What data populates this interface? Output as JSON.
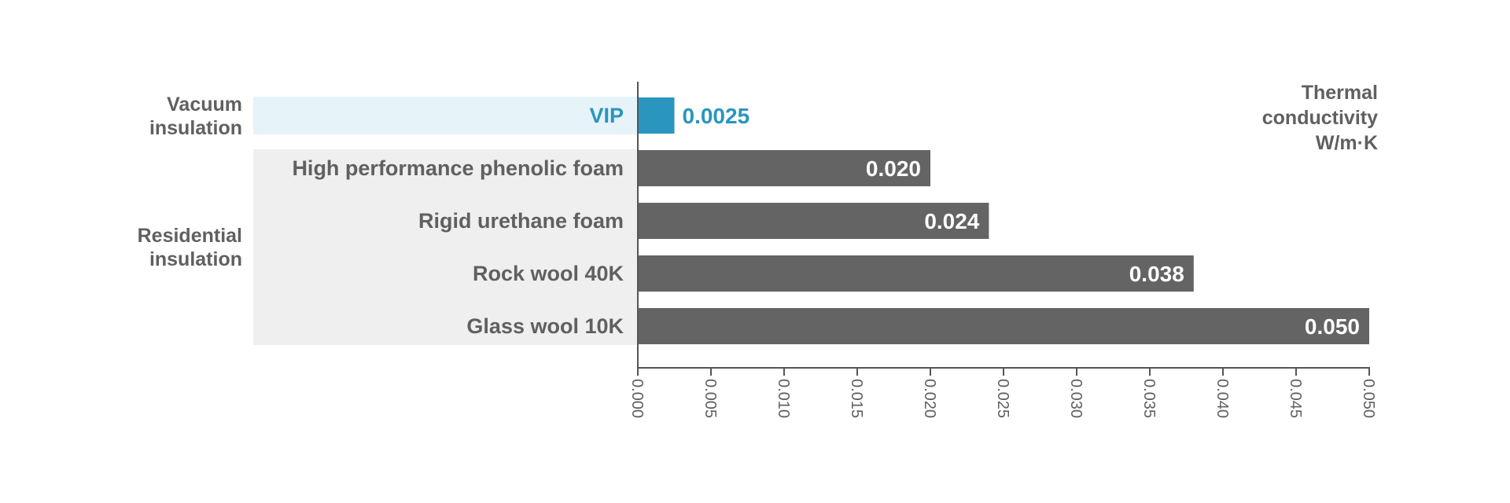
{
  "chart_data": {
    "type": "bar",
    "orientation": "horizontal",
    "categories": [
      "VIP",
      "High performance phenolic foam",
      "Rigid urethane foam",
      "Rock wool 40K",
      "Glass wool 10K"
    ],
    "values": [
      0.0025,
      0.02,
      0.024,
      0.038,
      0.05
    ],
    "value_labels": [
      "0.0025",
      "0.020",
      "0.024",
      "0.038",
      "0.050"
    ],
    "groups": [
      {
        "label_lines": [
          "Vacuum",
          "insulation"
        ],
        "members": [
          "VIP"
        ]
      },
      {
        "label_lines": [
          "Residential",
          "insulation"
        ],
        "members": [
          "High performance phenolic foam",
          "Rigid urethane foam",
          "Rock wool 40K",
          "Glass wool 10K"
        ]
      }
    ],
    "xlim": [
      0,
      0.05
    ],
    "x_ticks": [
      "0.000",
      "0.005",
      "0.010",
      "0.015",
      "0.020",
      "0.025",
      "0.030",
      "0.035",
      "0.040",
      "0.045",
      "0.050"
    ],
    "unit_label_lines": [
      "Thermal",
      "conductivity",
      "W/m·K"
    ],
    "grid": false,
    "colors": {
      "highlight_bar": "#2a95bf",
      "highlight_band": "#e6f3f9",
      "bar": "#646464",
      "band": "#efefef",
      "text": "#606060",
      "axis": "#555555"
    }
  }
}
